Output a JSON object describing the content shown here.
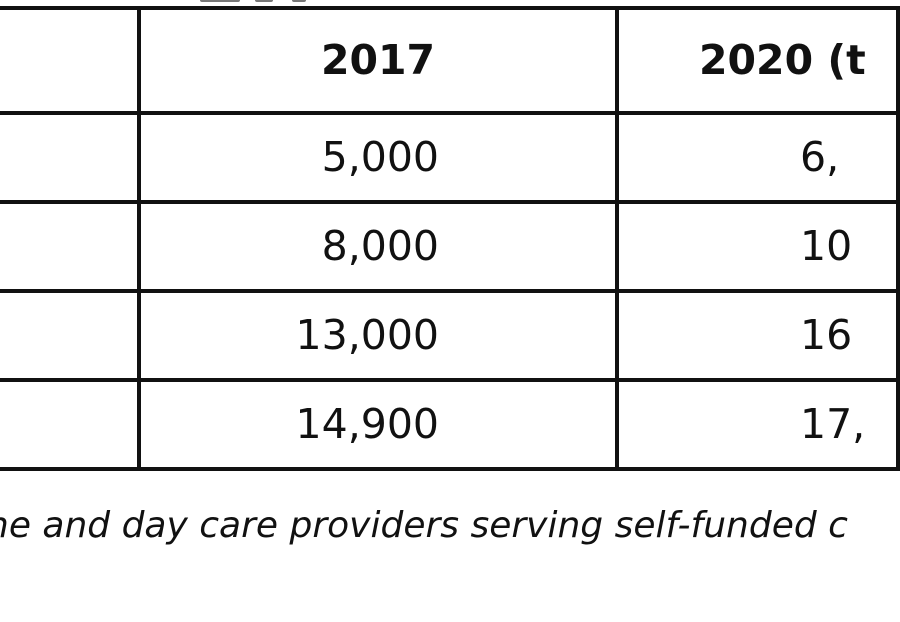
{
  "table": {
    "columns": [
      "",
      "2017",
      "2020 (t"
    ],
    "rows": [
      {
        "label": "",
        "v2017": "5,000",
        "v2020": "6,"
      },
      {
        "label": "",
        "v2017": "8,000",
        "v2020": "10"
      },
      {
        "label": "",
        "v2017": "13,000",
        "v2020": "16"
      },
      {
        "label": "",
        "v2017": "14,900",
        "v2020": "17,"
      }
    ]
  },
  "note": "ne and day care providers serving self-funded c"
}
